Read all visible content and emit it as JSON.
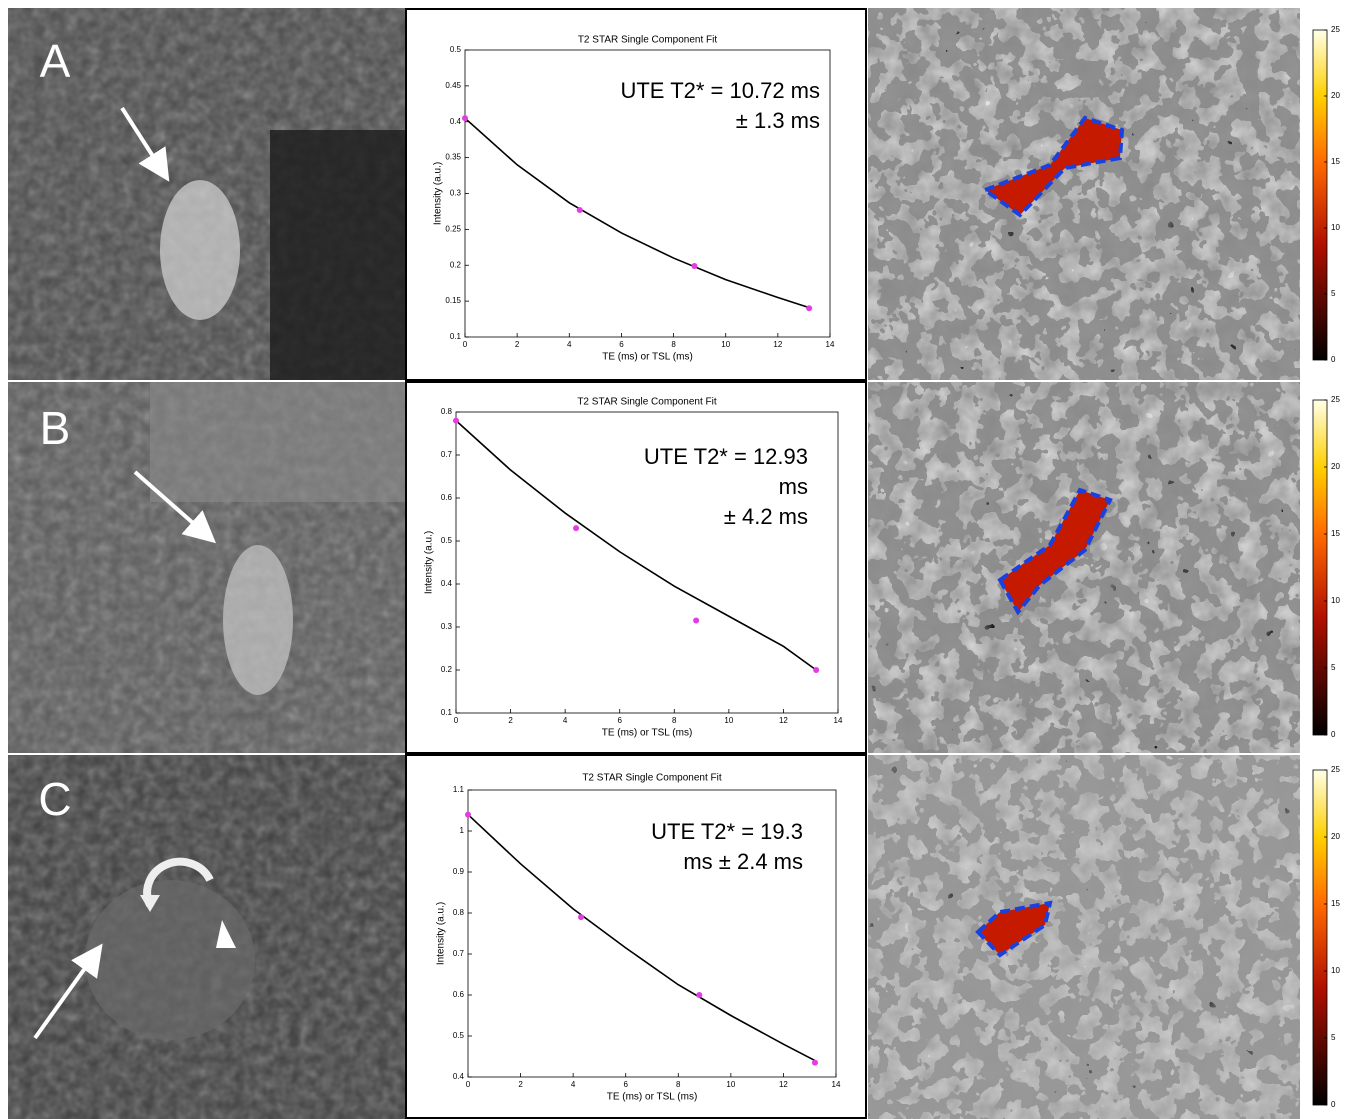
{
  "panels": [
    {
      "label": "A",
      "colorbar": {
        "ylim": [
          0,
          25
        ],
        "yticks": [
          0,
          5,
          10,
          15,
          20,
          25
        ]
      }
    },
    {
      "label": "B",
      "colorbar": {
        "ylim": [
          0,
          25
        ],
        "yticks": [
          0,
          5,
          10,
          15,
          20,
          25
        ]
      }
    },
    {
      "label": "C",
      "colorbar": {
        "ylim": [
          0,
          25
        ],
        "yticks": [
          0,
          5,
          10,
          15,
          20,
          25
        ]
      }
    }
  ],
  "chart_data": [
    {
      "type": "scatter",
      "title": "T2 STAR Single Component Fit",
      "x_label": "TE (ms) or TSL (ms)",
      "y_label": "Intensity (a.u.)",
      "annotation": [
        "UTE T2* = 10.72 ms",
        "± 1.3 ms"
      ],
      "xlim": [
        0,
        14
      ],
      "xticks": [
        0,
        2,
        4,
        6,
        8,
        10,
        12,
        14
      ],
      "ylim": [
        0.1,
        0.5
      ],
      "yticks": [
        0.1,
        0.15,
        0.2,
        0.25,
        0.3,
        0.35,
        0.4,
        0.45,
        0.5
      ],
      "series": [
        {
          "type": "scatter",
          "color": "#e23ce2",
          "x": [
            0,
            4.4,
            8.8,
            13.2
          ],
          "values": [
            0.405,
            0.277,
            0.199,
            0.14
          ]
        },
        {
          "type": "line",
          "color": "#000000",
          "x": [
            0,
            2,
            4,
            6,
            8,
            10,
            12,
            13.2
          ],
          "values": [
            0.405,
            0.34,
            0.287,
            0.245,
            0.21,
            0.18,
            0.155,
            0.141
          ]
        }
      ]
    },
    {
      "type": "scatter",
      "title": "T2 STAR Single Component Fit",
      "x_label": "TE (ms) or TSL (ms)",
      "y_label": "Intensity (a.u.)",
      "annotation": [
        "UTE T2* = 12.93",
        "ms",
        "± 4.2 ms"
      ],
      "xlim": [
        0,
        14
      ],
      "xticks": [
        0,
        2,
        4,
        6,
        8,
        10,
        12,
        14
      ],
      "ylim": [
        0.1,
        0.8
      ],
      "yticks": [
        0.1,
        0.2,
        0.3,
        0.4,
        0.5,
        0.6,
        0.7,
        0.8
      ],
      "series": [
        {
          "type": "scatter",
          "color": "#e23ce2",
          "x": [
            0,
            4.4,
            8.8,
            13.2
          ],
          "values": [
            0.78,
            0.53,
            0.315,
            0.2
          ]
        },
        {
          "type": "line",
          "color": "#000000",
          "x": [
            0,
            2,
            4,
            6,
            8,
            10,
            12,
            13.2
          ],
          "values": [
            0.78,
            0.665,
            0.565,
            0.475,
            0.395,
            0.325,
            0.255,
            0.2
          ]
        }
      ]
    },
    {
      "type": "scatter",
      "title": "T2 STAR Single Component Fit",
      "x_label": "TE (ms) or TSL (ms)",
      "y_label": "Intensity (a.u.)",
      "annotation": [
        "UTE T2* = 19.3",
        "ms ± 2.4 ms"
      ],
      "xlim": [
        0,
        14
      ],
      "xticks": [
        0,
        2,
        4,
        6,
        8,
        10,
        12,
        14
      ],
      "ylim": [
        0.4,
        1.1
      ],
      "yticks": [
        0.4,
        0.5,
        0.6,
        0.7,
        0.8,
        0.9,
        1,
        1.1
      ],
      "series": [
        {
          "type": "scatter",
          "color": "#e23ce2",
          "x": [
            0,
            4.3,
            8.8,
            13.2
          ],
          "values": [
            1.04,
            0.79,
            0.6,
            0.435
          ]
        },
        {
          "type": "line",
          "color": "#000000",
          "x": [
            0,
            2,
            4,
            6,
            8,
            10,
            12,
            13.2
          ],
          "values": [
            1.04,
            0.92,
            0.81,
            0.715,
            0.625,
            0.55,
            0.48,
            0.44
          ]
        }
      ]
    }
  ]
}
